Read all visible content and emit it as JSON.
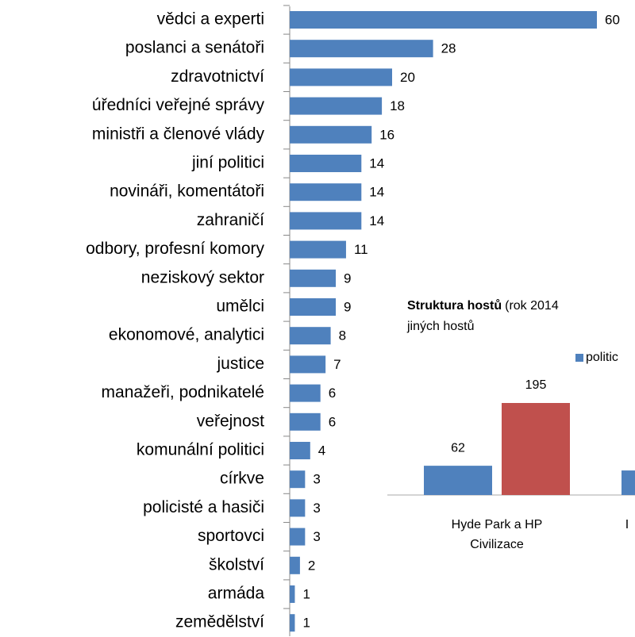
{
  "chart_data": [
    {
      "type": "barh",
      "categories": [
        "vědci a experti",
        "poslanci a senátoři",
        "zdravotnictví",
        "úředníci veřejné správy",
        "ministři a členové vlády",
        "jiní politici",
        "novináři, komentátoři",
        "zahraničí",
        "odbory, profesní komory",
        "neziskový sektor",
        "umělci",
        "ekonomové, analytici",
        "justice",
        "manažeři, podnikatelé",
        "veřejnost",
        "komunální politici",
        "církve",
        "policisté a hasiči",
        "sportovci",
        "školství",
        "armáda",
        "zemědělství"
      ],
      "values": [
        60,
        28,
        20,
        18,
        16,
        14,
        14,
        14,
        11,
        9,
        9,
        8,
        7,
        6,
        6,
        4,
        3,
        3,
        3,
        2,
        1,
        1
      ],
      "color": "#4f81bd"
    },
    {
      "type": "bar",
      "title": "Struktura hostů",
      "subtitle_lines": [
        "(rok 2014",
        "jiných hostů"
      ],
      "categories": [
        "Hyde Park a HP Civilizace",
        "I"
      ],
      "series": [
        {
          "name": "politic",
          "color": "#4f81bd",
          "values": [
            62,
            52
          ],
          "value_labels": [
            "62",
            null
          ]
        },
        {
          "name": null,
          "color": "#c0504d",
          "values": [
            195,
            null
          ],
          "value_labels": [
            "195",
            null
          ]
        }
      ]
    }
  ]
}
